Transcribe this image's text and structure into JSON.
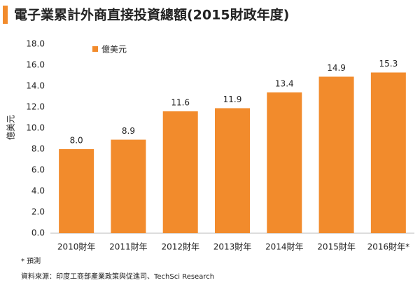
{
  "chart_data": {
    "type": "bar",
    "title": "電子業累計外商直接投資總額(2015財政年度)",
    "ylabel": "億美元",
    "categories": [
      "2010財年",
      "2011財年",
      "2012財年",
      "2013財年",
      "2014財年",
      "2015財年",
      "2016財年*"
    ],
    "series": [
      {
        "name": "億美元",
        "color": "#f28b2c",
        "values": [
          8.0,
          8.9,
          11.6,
          11.9,
          13.4,
          14.9,
          15.3
        ],
        "value_labels": [
          "8.0",
          "8.9",
          "11.6",
          "11.9",
          "13.4",
          "14.9",
          "15.3"
        ]
      }
    ],
    "ylim": [
      0,
      18
    ],
    "yticks": [
      {
        "value": 0,
        "label": "0.0"
      },
      {
        "value": 2,
        "label": "2.0"
      },
      {
        "value": 4,
        "label": "4.0"
      },
      {
        "value": 6,
        "label": "6.0"
      },
      {
        "value": 8,
        "label": "8.0"
      },
      {
        "value": 10,
        "label": "10.0"
      },
      {
        "value": 12,
        "label": "12.0"
      },
      {
        "value": 14,
        "label": "14.0"
      },
      {
        "value": 16,
        "label": "16.0"
      },
      {
        "value": 18,
        "label": "18.0"
      }
    ],
    "grid": false,
    "legend": "top-left"
  },
  "notes": [
    "* 預測",
    "資料來源：印度工商部產業政策與促進司、TechSci Research"
  ]
}
